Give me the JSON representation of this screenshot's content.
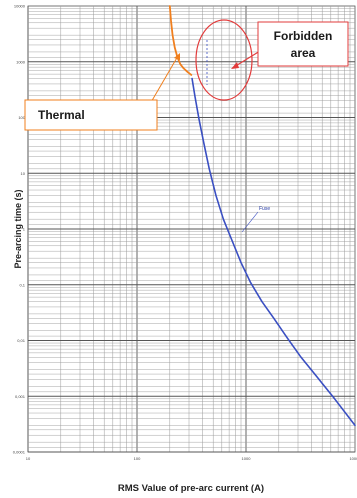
{
  "chart_data": {
    "type": "line",
    "title": "",
    "xlabel": "RMS Value of pre-arc current (A)",
    "ylabel": "Pre-arcing time (s)",
    "x_scale": "log",
    "y_scale": "log",
    "xlim": [
      10,
      10000
    ],
    "ylim": [
      0.0001,
      10000
    ],
    "grid": true,
    "x_ticks": [
      "10",
      "100",
      "1000",
      "10000"
    ],
    "y_ticks": [
      "10000",
      "1000",
      "100",
      "10",
      "1",
      "0,1",
      "0,01",
      "0,001",
      "0,0001"
    ],
    "series": [
      {
        "name": "Fuse",
        "color": "#3a4fc2",
        "x": [
          320,
          340,
          370,
          410,
          460,
          530,
          620,
          750,
          900,
          1100,
          1400,
          1800,
          2400,
          3200,
          4500,
          6500,
          10000
        ],
        "y": [
          500,
          240,
          95,
          35,
          12,
          4,
          1.5,
          0.6,
          0.25,
          0.11,
          0.05,
          0.025,
          0.011,
          0.005,
          0.0022,
          0.0009,
          0.0003
        ]
      },
      {
        "name": "",
        "color": "#f07f1e",
        "x": [
          200,
          205,
          212,
          222,
          235,
          250,
          268,
          290,
          315
        ],
        "y": [
          10000,
          5500,
          3000,
          1800,
          1200,
          900,
          760,
          660,
          580
        ]
      }
    ],
    "annotations": [
      {
        "text": "Thermal",
        "type": "callout"
      },
      {
        "text": "Forbidden area",
        "type": "callout"
      }
    ]
  },
  "callouts": {
    "thermal": "Thermal",
    "forbidden_line1": "Forbidden",
    "forbidden_line2": "area"
  }
}
